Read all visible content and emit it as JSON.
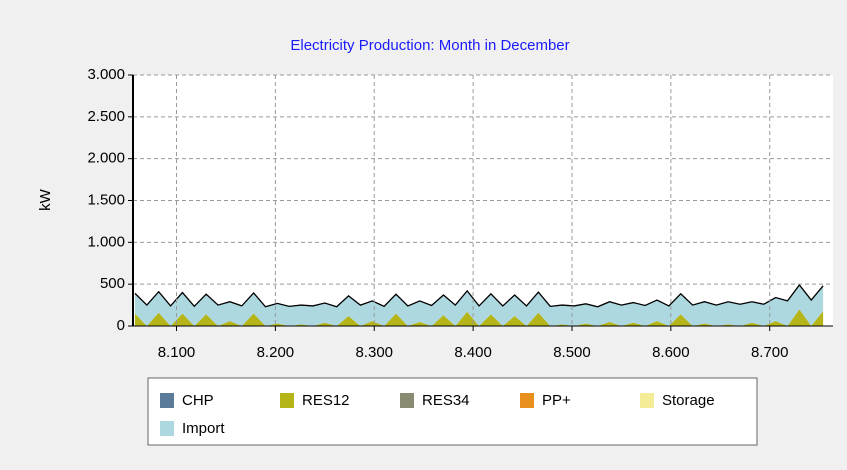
{
  "chart_data": {
    "type": "area",
    "stacked": true,
    "title": "Electricity Production: Month in December",
    "y_label": "kW",
    "xlim": [
      8056,
      8764
    ],
    "ylim": [
      0,
      3000
    ],
    "xticks": [
      {
        "value": 8100,
        "label": "8.100"
      },
      {
        "value": 8200,
        "label": "8.200"
      },
      {
        "value": 8300,
        "label": "8.300"
      },
      {
        "value": 8400,
        "label": "8.400"
      },
      {
        "value": 8500,
        "label": "8.500"
      },
      {
        "value": 8600,
        "label": "8.600"
      },
      {
        "value": 8700,
        "label": "8.700"
      }
    ],
    "yticks": [
      0,
      500,
      {
        "value": 1000,
        "label": "1.000"
      },
      {
        "value": 1500,
        "label": "1.500"
      },
      {
        "value": 2000,
        "label": "2.000"
      },
      {
        "value": 2500,
        "label": "2.500"
      },
      {
        "value": 3000,
        "label": "3.000"
      }
    ],
    "grid": true,
    "x": [
      8058,
      8070,
      8082,
      8094,
      8106,
      8118,
      8130,
      8142,
      8154,
      8166,
      8178,
      8190,
      8202,
      8214,
      8226,
      8238,
      8250,
      8262,
      8274,
      8286,
      8298,
      8310,
      8322,
      8334,
      8346,
      8358,
      8370,
      8382,
      8394,
      8406,
      8418,
      8430,
      8442,
      8454,
      8466,
      8478,
      8490,
      8502,
      8514,
      8526,
      8538,
      8550,
      8562,
      8574,
      8586,
      8598,
      8610,
      8622,
      8634,
      8646,
      8658,
      8670,
      8682,
      8694,
      8706,
      8718,
      8730,
      8742,
      8754
    ],
    "series": [
      {
        "name": "CHP",
        "color": "#5b7c99",
        "values": [
          0,
          0,
          0,
          0,
          0,
          0,
          0,
          0,
          0,
          0,
          0,
          0,
          0,
          0,
          0,
          0,
          0,
          0,
          0,
          0,
          0,
          0,
          0,
          0,
          0,
          0,
          0,
          0,
          0,
          0,
          0,
          0,
          0,
          0,
          0,
          0,
          0,
          0,
          0,
          0,
          0,
          0,
          0,
          0,
          0,
          0,
          0,
          0,
          0,
          0,
          0,
          0,
          0,
          0,
          0,
          0,
          0,
          0,
          0
        ]
      },
      {
        "name": "RES12",
        "color": "#b5b51a",
        "values": [
          150,
          0,
          160,
          0,
          150,
          0,
          140,
          0,
          60,
          0,
          150,
          0,
          30,
          0,
          20,
          0,
          40,
          0,
          120,
          0,
          60,
          0,
          150,
          0,
          50,
          0,
          130,
          0,
          170,
          0,
          140,
          0,
          120,
          0,
          160,
          0,
          20,
          0,
          30,
          0,
          50,
          0,
          40,
          0,
          60,
          0,
          140,
          0,
          30,
          0,
          20,
          0,
          40,
          0,
          60,
          0,
          200,
          0,
          180
        ]
      },
      {
        "name": "RES34",
        "color": "#8a8a72",
        "values": [
          0,
          0,
          0,
          0,
          0,
          0,
          0,
          0,
          0,
          0,
          0,
          0,
          0,
          0,
          0,
          0,
          0,
          0,
          0,
          0,
          0,
          0,
          0,
          0,
          0,
          0,
          0,
          0,
          0,
          0,
          0,
          0,
          0,
          0,
          0,
          0,
          0,
          0,
          0,
          0,
          0,
          0,
          0,
          0,
          0,
          0,
          0,
          0,
          0,
          0,
          0,
          0,
          0,
          0,
          0,
          0,
          0,
          0,
          0
        ]
      },
      {
        "name": "PP+",
        "color": "#e8901e",
        "values": [
          0,
          0,
          0,
          0,
          0,
          0,
          0,
          0,
          0,
          0,
          0,
          0,
          0,
          0,
          0,
          0,
          0,
          0,
          0,
          0,
          0,
          0,
          0,
          0,
          0,
          0,
          0,
          0,
          0,
          0,
          0,
          0,
          0,
          0,
          0,
          0,
          0,
          0,
          0,
          0,
          0,
          0,
          0,
          0,
          0,
          0,
          0,
          0,
          0,
          0,
          0,
          0,
          0,
          0,
          0,
          0,
          0,
          0,
          0
        ]
      },
      {
        "name": "Storage",
        "color": "#f5ec98",
        "values": [
          0,
          0,
          0,
          0,
          0,
          0,
          0,
          0,
          0,
          0,
          0,
          0,
          0,
          0,
          0,
          0,
          0,
          0,
          0,
          0,
          0,
          0,
          0,
          0,
          0,
          0,
          0,
          0,
          0,
          0,
          0,
          0,
          0,
          0,
          0,
          0,
          0,
          0,
          0,
          0,
          0,
          0,
          0,
          0,
          0,
          0,
          0,
          0,
          0,
          0,
          0,
          0,
          0,
          0,
          0,
          0,
          0,
          0,
          0
        ]
      },
      {
        "name": "Import",
        "color": "#add8e0",
        "values": [
          240,
          250,
          250,
          240,
          250,
          235,
          240,
          250,
          230,
          240,
          245,
          230,
          240,
          235,
          230,
          240,
          235,
          230,
          240,
          250,
          240,
          235,
          230,
          240,
          250,
          245,
          240,
          250,
          250,
          240,
          245,
          240,
          250,
          240,
          245,
          235,
          230,
          240,
          235,
          230,
          240,
          250,
          240,
          245,
          250,
          240,
          245,
          250,
          260,
          250,
          270,
          260,
          250,
          260,
          280,
          300,
          290,
          310,
          300
        ]
      }
    ]
  }
}
